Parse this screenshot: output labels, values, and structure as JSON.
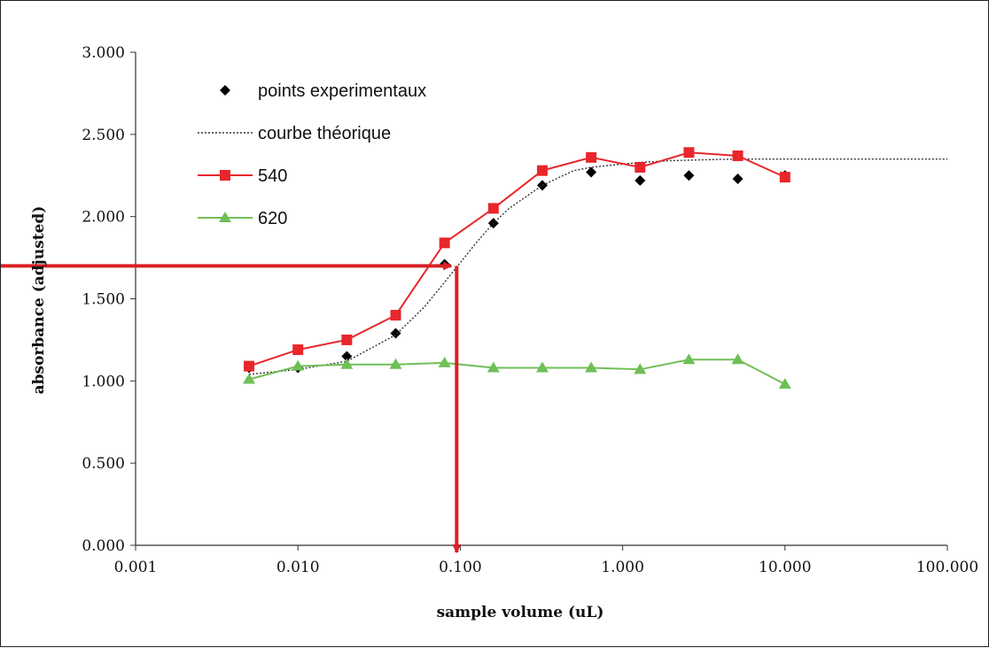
{
  "chart_data": {
    "type": "scatter",
    "title": "",
    "xlabel": "sample volume (uL)",
    "ylabel": "absorbance (adjusted)",
    "x_scale": "log",
    "xlim": [
      0.001,
      100.0
    ],
    "ylim": [
      0.0,
      3.0
    ],
    "x_ticks": [
      "0.001",
      "0.010",
      "0.100",
      "1.000",
      "10.000",
      "100.000"
    ],
    "y_ticks": [
      "0.000",
      "0.500",
      "1.000",
      "1.500",
      "2.000",
      "2.500",
      "3.000"
    ],
    "grid": false,
    "legend_position": "top-left",
    "series": [
      {
        "name": "points experimentaux",
        "kind": "markers",
        "marker": "diamond",
        "color": "#000000",
        "x": [
          0.005,
          0.01,
          0.02,
          0.04,
          0.08,
          0.16,
          0.32,
          0.64,
          1.28,
          2.56,
          5.12,
          10.0
        ],
        "y": [
          1.08,
          1.08,
          1.15,
          1.29,
          1.71,
          1.96,
          2.19,
          2.27,
          2.22,
          2.25,
          2.23,
          2.25
        ]
      },
      {
        "name": "courbe théorique",
        "kind": "dotted-line",
        "color": "#333333",
        "x": [
          0.005,
          0.01,
          0.02,
          0.04,
          0.06,
          0.08,
          0.1,
          0.13,
          0.16,
          0.2,
          0.32,
          0.5,
          0.64,
          1.0,
          1.28,
          2.0,
          3.0,
          5.0,
          10.0,
          100.0
        ],
        "y": [
          1.04,
          1.07,
          1.12,
          1.28,
          1.45,
          1.6,
          1.72,
          1.86,
          1.96,
          2.05,
          2.19,
          2.28,
          2.3,
          2.32,
          2.33,
          2.34,
          2.345,
          2.35,
          2.35,
          2.35
        ]
      },
      {
        "name": "540",
        "kind": "line-markers",
        "marker": "square",
        "color": "#e8262b",
        "x": [
          0.005,
          0.01,
          0.02,
          0.04,
          0.08,
          0.16,
          0.32,
          0.64,
          1.28,
          2.56,
          5.12,
          10.0
        ],
        "y": [
          1.09,
          1.19,
          1.25,
          1.4,
          1.84,
          2.05,
          2.28,
          2.36,
          2.3,
          2.39,
          2.37,
          2.24
        ]
      },
      {
        "name": "620",
        "kind": "line-markers",
        "marker": "triangle",
        "color": "#6fbf57",
        "x": [
          0.005,
          0.01,
          0.02,
          0.04,
          0.08,
          0.16,
          0.32,
          0.64,
          1.28,
          2.56,
          5.12,
          10.0
        ],
        "y": [
          1.01,
          1.09,
          1.1,
          1.1,
          1.11,
          1.08,
          1.08,
          1.08,
          1.07,
          1.13,
          1.13,
          0.98
        ]
      }
    ],
    "annotations": [
      {
        "kind": "horizontal-arrow",
        "color": "#d92026",
        "y": 1.7,
        "to_x": 0.088
      },
      {
        "kind": "vertical-arrow",
        "color": "#d92026",
        "x": 0.095,
        "from_y": 1.7,
        "to_y": 0.0
      }
    ]
  }
}
